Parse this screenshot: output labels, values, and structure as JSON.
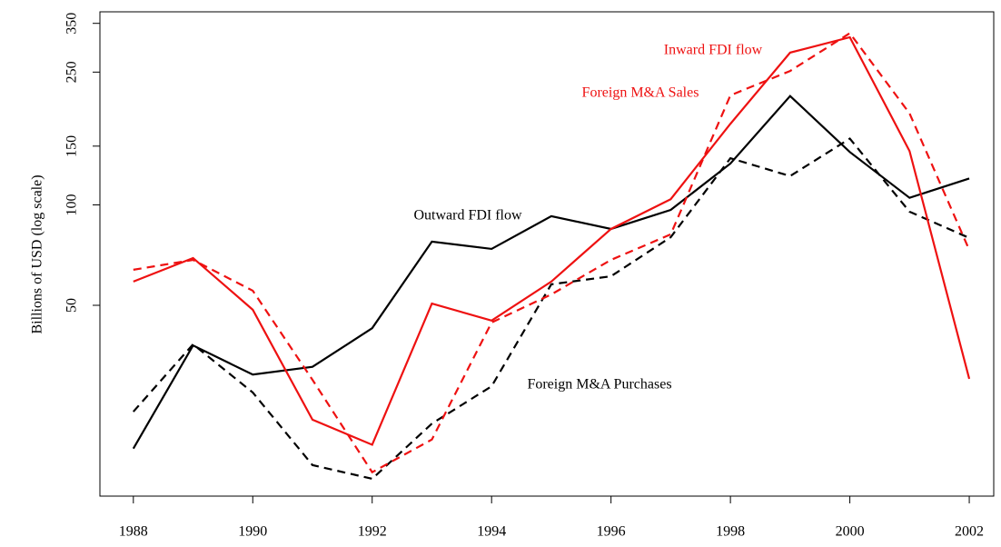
{
  "chart_data": {
    "type": "line",
    "y_label": "Billions of USD (log scale)",
    "log_scale_y": true,
    "x": [
      1988,
      1989,
      1990,
      1991,
      1992,
      1993,
      1994,
      1995,
      1996,
      1997,
      1998,
      1999,
      2000,
      2001,
      2002
    ],
    "xlim": [
      1987.44,
      2002.41
    ],
    "xticks": [
      1988,
      1990,
      1992,
      1994,
      1996,
      1998,
      2000,
      2002
    ],
    "ylim": [
      13.4,
      379
    ],
    "yticks": [
      50,
      100,
      150,
      250,
      350
    ],
    "series": [
      {
        "name": "Outward FDI flow",
        "color": "#000000",
        "dash": false,
        "values": [
          18.6,
          37.9,
          31,
          32.7,
          42.7,
          77.6,
          73.8,
          92.5,
          84.7,
          96.6,
          133,
          212,
          144,
          105,
          120
        ]
      },
      {
        "name": "Foreign M&A Purchases",
        "color": "#000000",
        "dash": true,
        "values": [
          24,
          38.2,
          27.4,
          16.6,
          15.1,
          22.1,
          28.6,
          57.8,
          61.1,
          80,
          138,
          122,
          158,
          95.4,
          79.6
        ]
      },
      {
        "name": "Inward FDI flow",
        "color": "#ee1111",
        "dash": false,
        "values": [
          58.9,
          69.3,
          48.5,
          22.7,
          19.1,
          50.6,
          45,
          58.9,
          84.7,
          104,
          175,
          286,
          318,
          145,
          30.1
        ]
      },
      {
        "name": "Foreign M&A Sales",
        "color": "#ee1111",
        "dash": true,
        "values": [
          63.9,
          68.4,
          55.3,
          29.9,
          15.8,
          19.8,
          44.4,
          53.9,
          68.4,
          81.6,
          213,
          252,
          327,
          188,
          73.3
        ]
      }
    ]
  }
}
